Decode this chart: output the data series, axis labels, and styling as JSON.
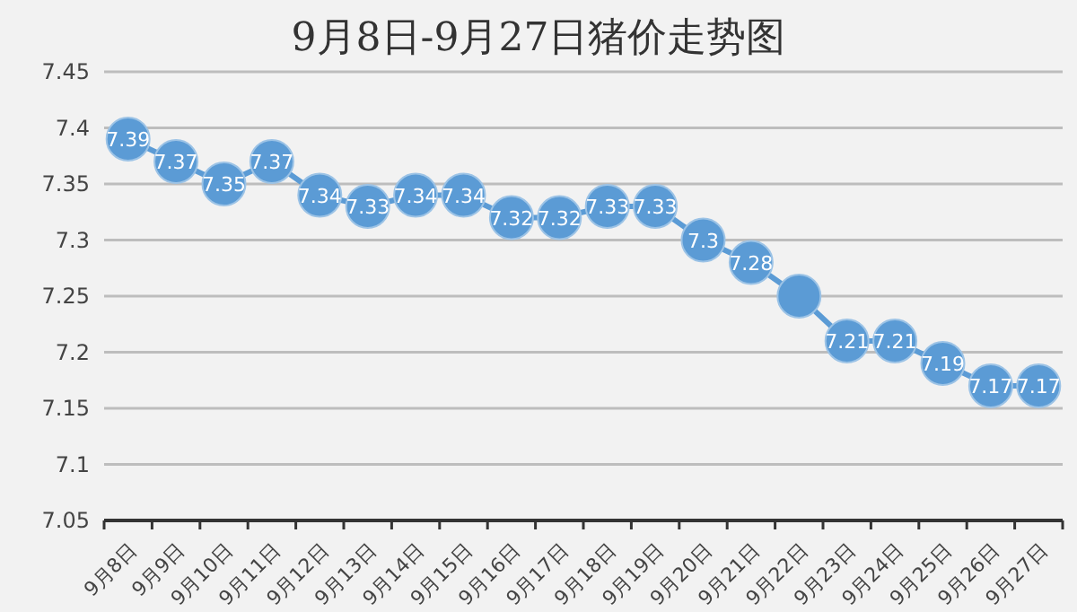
{
  "chart_data": {
    "type": "line",
    "title": "9月8日-9月27日猪价走势图",
    "categories": [
      "9月8日",
      "9月9日",
      "9月10日",
      "9月11日",
      "9月12日",
      "9月13日",
      "9月14日",
      "9月15日",
      "9月16日",
      "9月17日",
      "9月18日",
      "9月19日",
      "9月20日",
      "9月21日",
      "9月22日",
      "9月23日",
      "9月24日",
      "9月25日",
      "9月26日",
      "9月27日"
    ],
    "series": [
      {
        "color": "#5b9bd5",
        "values": [
          7.39,
          7.37,
          7.35,
          7.37,
          7.34,
          7.33,
          7.34,
          7.34,
          7.32,
          7.32,
          7.33,
          7.33,
          7.3,
          7.28,
          7.25,
          7.21,
          7.21,
          7.19,
          7.17,
          7.17
        ],
        "value_labels": [
          "7.39",
          "7.37",
          "7.35",
          "7.37",
          "7.34",
          "7.33",
          "7.34",
          "7.34",
          "7.32",
          "7.32",
          "7.33",
          "7.33",
          "7.3",
          "7.28",
          null,
          "7.21",
          "7.21",
          "7.19",
          "7.17",
          "7.17"
        ]
      }
    ],
    "ylim": [
      7.05,
      7.45
    ],
    "yticks": [
      7.05,
      7.1,
      7.15,
      7.2,
      7.25,
      7.3,
      7.35,
      7.4,
      7.45
    ],
    "grid": "y",
    "marker": "circle",
    "line_style": "solid"
  }
}
